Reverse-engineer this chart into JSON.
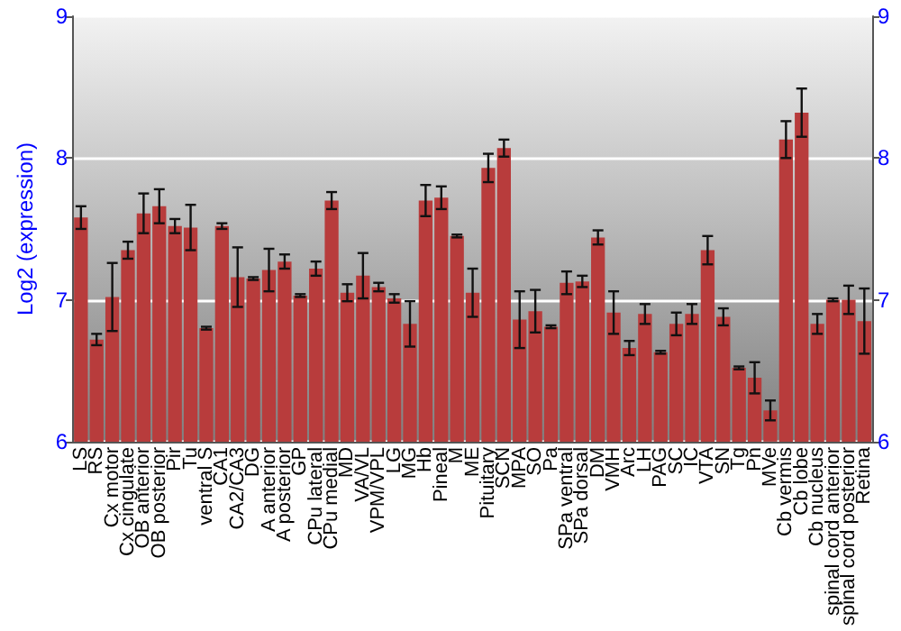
{
  "chart_data": {
    "type": "bar",
    "ylabel": "Log2 (expression)",
    "categories": [
      "LS",
      "RS",
      "Cx motor",
      "Cx cingulate",
      "OB anterior",
      "OB posterior",
      "Pir",
      "Tu",
      "ventral S",
      "CA1",
      "CA2/CA3",
      "DG",
      "A anterior",
      "A posterior",
      "GP",
      "CPu lateral",
      "CPu medial",
      "MD",
      "VA/VL",
      "VPM/VPL",
      "LG",
      "MG",
      "Hb",
      "Pineal",
      "M",
      "ME",
      "Pituitary",
      "SCN",
      "MPA",
      "SO",
      "Pa",
      "SPa ventral",
      "SPa dorsal",
      "DM",
      "VMH",
      "Arc",
      "LH",
      "PAG",
      "SC",
      "IC",
      "VTA",
      "SN",
      "Tg",
      "Pn",
      "MVe",
      "Cb vermis",
      "Cb lobe",
      "Cb nucleus",
      "spinal cord anterior",
      "spinal cord posterior",
      "Retina"
    ],
    "series": [
      {
        "color": "#b83c3c",
        "values": [
          7.58,
          6.72,
          7.02,
          7.35,
          7.61,
          7.66,
          7.52,
          7.51,
          6.8,
          7.52,
          7.16,
          7.15,
          7.21,
          7.27,
          7.03,
          7.22,
          7.7,
          7.05,
          7.17,
          7.09,
          7.01,
          6.83,
          7.7,
          7.72,
          7.45,
          7.05,
          7.93,
          8.07,
          6.86,
          6.92,
          6.81,
          7.12,
          7.13,
          7.44,
          6.91,
          6.66,
          6.9,
          6.63,
          6.83,
          6.9,
          7.35,
          6.88,
          6.52,
          6.45,
          6.22,
          8.13,
          8.32,
          6.83,
          7.0,
          7.0,
          6.85
        ],
        "errors": [
          0.08,
          0.04,
          0.24,
          0.06,
          0.14,
          0.12,
          0.05,
          0.16,
          0.01,
          0.02,
          0.21,
          0.01,
          0.15,
          0.05,
          0.01,
          0.05,
          0.06,
          0.06,
          0.16,
          0.03,
          0.03,
          0.16,
          0.11,
          0.08,
          0.01,
          0.17,
          0.1,
          0.06,
          0.2,
          0.15,
          0.01,
          0.08,
          0.04,
          0.05,
          0.15,
          0.05,
          0.07,
          0.01,
          0.08,
          0.07,
          0.1,
          0.06,
          0.01,
          0.11,
          0.07,
          0.13,
          0.17,
          0.07,
          0.01,
          0.1,
          0.23
        ]
      }
    ],
    "ylim": [
      6,
      9
    ],
    "yticks": [
      6,
      7,
      8,
      9
    ],
    "y2lim": [
      6,
      9
    ],
    "y2ticks": [
      6,
      7,
      8,
      9
    ],
    "grid": "y"
  }
}
